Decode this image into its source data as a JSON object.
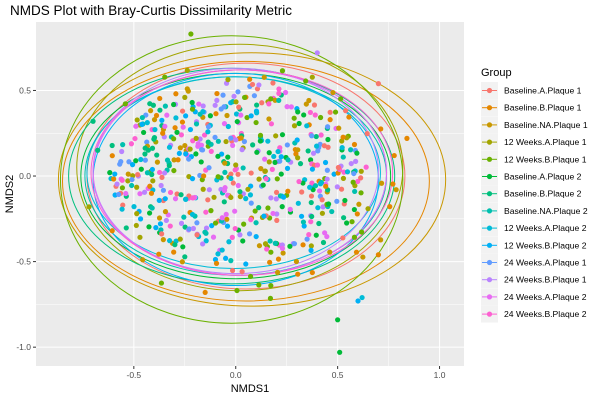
{
  "chart_data": {
    "type": "scatter",
    "title": "NMDS Plot with Bray-Curtis Dissimilarity Metric",
    "xlabel": "NMDS1",
    "ylabel": "NMDS2",
    "xlim": [
      -0.98,
      1.12
    ],
    "ylim": [
      -1.11,
      0.9
    ],
    "x_ticks": [
      -0.5,
      0.0,
      0.5,
      1.0
    ],
    "x_tick_labels": [
      "-0.5",
      "0.0",
      "0.5",
      "1.0"
    ],
    "y_ticks": [
      -1.0,
      -0.5,
      0.0,
      0.5
    ],
    "y_tick_labels": [
      "-1.0",
      "-0.5",
      "0.0",
      "0.5"
    ],
    "grid": true,
    "legend_title": "Group",
    "legend_position": "right",
    "series": [
      {
        "name": "Baseline.A.Plaque 1",
        "color": "#F8766D",
        "ellipse": {
          "cx": 0.05,
          "cy": 0.0,
          "rx": 0.78,
          "ry": 0.66
        }
      },
      {
        "name": "Baseline.B.Plaque 1",
        "color": "#E58700",
        "ellipse": {
          "cx": 0.05,
          "cy": -0.03,
          "rx": 0.9,
          "ry": 0.7
        }
      },
      {
        "name": "Baseline.NA.Plaque 1",
        "color": "#C99800",
        "ellipse": {
          "cx": 0.08,
          "cy": -0.02,
          "rx": 0.95,
          "ry": 0.74
        }
      },
      {
        "name": "12 Weeks.A.Plaque 1",
        "color": "#A3A500",
        "ellipse": {
          "cx": 0.02,
          "cy": 0.05,
          "rx": 0.8,
          "ry": 0.72
        }
      },
      {
        "name": "12 Weeks.B.Plaque 1",
        "color": "#6BB100",
        "ellipse": {
          "cx": -0.02,
          "cy": -0.02,
          "rx": 0.84,
          "ry": 0.84
        }
      },
      {
        "name": "Baseline.A.Plaque 2",
        "color": "#00BA38",
        "ellipse": {
          "cx": 0.0,
          "cy": 0.0,
          "rx": 0.76,
          "ry": 0.6
        }
      },
      {
        "name": "Baseline.B.Plaque 2",
        "color": "#00BF7D",
        "ellipse": {
          "cx": -0.02,
          "cy": 0.0,
          "rx": 0.8,
          "ry": 0.63
        }
      },
      {
        "name": "Baseline.NA.Plaque 2",
        "color": "#00C0AF",
        "ellipse": {
          "cx": 0.0,
          "cy": 0.0,
          "rx": 0.74,
          "ry": 0.58
        }
      },
      {
        "name": "12 Weeks.A.Plaque 2",
        "color": "#00BCD8",
        "ellipse": {
          "cx": -0.01,
          "cy": 0.02,
          "rx": 0.72,
          "ry": 0.56
        }
      },
      {
        "name": "12 Weeks.B.Plaque 2",
        "color": "#00B0F6",
        "ellipse": {
          "cx": 0.0,
          "cy": -0.02,
          "rx": 0.7,
          "ry": 0.62
        }
      },
      {
        "name": "24 Weeks.A.Plaque 1",
        "color": "#619CFF",
        "ellipse": {
          "cx": 0.02,
          "cy": 0.02,
          "rx": 0.72,
          "ry": 0.6
        }
      },
      {
        "name": "24 Weeks.B.Plaque 1",
        "color": "#B983FF",
        "ellipse": {
          "cx": 0.0,
          "cy": 0.03,
          "rx": 0.7,
          "ry": 0.6
        }
      },
      {
        "name": "24 Weeks.A.Plaque 2",
        "color": "#E76BF3",
        "ellipse": {
          "cx": 0.02,
          "cy": 0.02,
          "rx": 0.72,
          "ry": 0.6
        }
      },
      {
        "name": "24 Weeks.B.Plaque 2",
        "color": "#FD61D1",
        "ellipse": {
          "cx": 0.03,
          "cy": 0.02,
          "rx": 0.74,
          "ry": 0.6
        }
      }
    ],
    "points_per_series": 45,
    "outliers": [
      {
        "x": 0.5,
        "y": -0.84,
        "series": 5
      },
      {
        "x": 0.51,
        "y": -1.03,
        "series": 5
      },
      {
        "x": 0.62,
        "y": -0.71,
        "series": 8
      },
      {
        "x": 0.6,
        "y": -0.73,
        "series": 9
      },
      {
        "x": -0.22,
        "y": 0.83,
        "series": 4
      },
      {
        "x": 0.7,
        "y": 0.54,
        "series": 0
      },
      {
        "x": 0.84,
        "y": 0.22,
        "series": 1
      },
      {
        "x": 0.7,
        "y": -0.46,
        "series": 1
      },
      {
        "x": -0.72,
        "y": -0.18,
        "series": 3
      },
      {
        "x": 0.4,
        "y": 0.72,
        "series": 11
      },
      {
        "x": -0.15,
        "y": -0.68,
        "series": 1
      },
      {
        "x": -0.7,
        "y": 0.32,
        "series": 6
      }
    ]
  }
}
